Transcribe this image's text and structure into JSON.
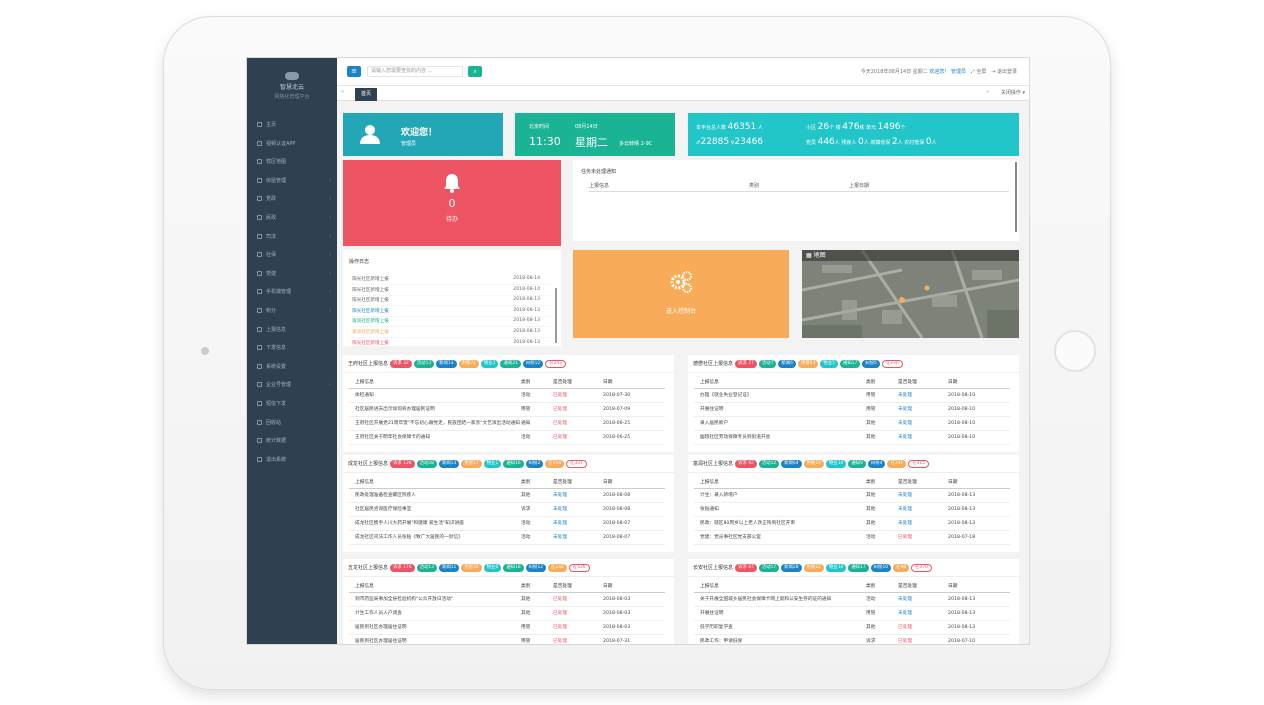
{
  "sidebar": {
    "logo_title": "智慧北云",
    "logo_sub": "网格化管理平台",
    "items": [
      {
        "label": "主页",
        "arrow": false
      },
      {
        "label": "视频认证APP",
        "arrow": false
      },
      {
        "label": "辖区地图",
        "arrow": false
      },
      {
        "label": "房屋管理",
        "arrow": true
      },
      {
        "label": "党政",
        "arrow": true
      },
      {
        "label": "民政",
        "arrow": true
      },
      {
        "label": "司法",
        "arrow": true
      },
      {
        "label": "社保",
        "arrow": true
      },
      {
        "label": "党建",
        "arrow": true
      },
      {
        "label": "手机端管理",
        "arrow": true
      },
      {
        "label": "积分",
        "arrow": true
      },
      {
        "label": "上报信息",
        "arrow": false
      },
      {
        "label": "下发信息",
        "arrow": false
      },
      {
        "label": "系统设置",
        "arrow": false
      },
      {
        "label": "企业号管理",
        "arrow": true
      },
      {
        "label": "短信下发",
        "arrow": false
      },
      {
        "label": "回收站",
        "arrow": false
      },
      {
        "label": "统计数据",
        "arrow": false
      },
      {
        "label": "退出系统",
        "arrow": false
      }
    ]
  },
  "topbar": {
    "menu_icon": "≡",
    "search_placeholder": "请输入您需要查找的内容 ...",
    "search_icon": "⌕",
    "datetime": "今天2018年08月14日 星期二",
    "welcome": "欢迎您！",
    "user": "管理员",
    "fullscreen": "全屏",
    "logout": "退出登录"
  },
  "tabs": {
    "prev": "«",
    "active": "首页",
    "next": "»",
    "close_ops": "关闭操作 ▾"
  },
  "welcome_card": {
    "title": "欢迎您！",
    "role": "管理员"
  },
  "date_card": {
    "city": "北京时间",
    "date": "08月14日",
    "time": "11:30",
    "weekday": "星期二",
    "weather": "多云转晴 2-9C"
  },
  "stats_card": {
    "l1_label": "本平台总人数",
    "l1_value": "46351",
    "l1_unit": "人",
    "l2_up": "22885",
    "l2_down": "23466",
    "r1": "小区",
    "r1_v": "26",
    "r1_u": "个 楼",
    "r1_v2": "476",
    "r1_u2": "栋 单元",
    "r1_v3": "1496",
    "r1_u3": "个",
    "r2": "党员",
    "r2_v": "446",
    "r2_u": "人 残疾人",
    "r2_v2": "0",
    "r2_u2": "人 城镇低保",
    "r2_v3": "2",
    "r2_u3": "人 农村低保",
    "r2_v4": "0",
    "r2_u4": "人"
  },
  "todo_card": {
    "count": "0",
    "label": "待办"
  },
  "task_panel": {
    "title": "任务未处理通知",
    "cols": [
      "上报信息",
      "类别",
      "上报日期"
    ]
  },
  "log_panel": {
    "title": "操作日志",
    "items": [
      {
        "text": "阳光社区新增上报",
        "date": "2018-08-14",
        "color": "#666"
      },
      {
        "text": "阳光社区新增上报",
        "date": "2018-08-14",
        "color": "#666"
      },
      {
        "text": "阳光社区新增上报",
        "date": "2018-08-13",
        "color": "#666"
      },
      {
        "text": "阳光社区新增上报",
        "date": "2018-08-13",
        "color": "#1c84c6"
      },
      {
        "text": "富润社区新增上报",
        "date": "2018-08-13",
        "color": "#1ab394"
      },
      {
        "text": "富润社区新增上报",
        "date": "2018-08-13",
        "color": "#f8ac59"
      },
      {
        "text": "阳光社区新增上报",
        "date": "2018-08-13",
        "color": "#ed5565"
      }
    ]
  },
  "console_card": {
    "label": "进入控制台"
  },
  "map_card": {
    "label": "地图"
  },
  "sections": [
    {
      "title": "王府社区上报信息",
      "badges": [
        "诉求 32",
        "活动13",
        "新闻13",
        "用管21",
        "物业1",
        "通知21",
        "纠纷12",
        "在243"
      ],
      "cols": [
        "上报信息",
        "类别",
        "是否处理",
        "日期"
      ],
      "rows": [
        [
          "体检通知",
          "活动",
          "已处理",
          "2018-07-30"
        ],
        [
          "社区居民进去出示如何商办理居民证明",
          "用管",
          "已处理",
          "2018-07-09"
        ],
        [
          "王府社区开展党21周年暨\"不忘初心跟党走，民族团结一家亲\"文艺演出活动通知",
          "通知",
          "已处理",
          "2018-06-25"
        ],
        [
          "王府社区关于明年社会保障卡的通知",
          "活动",
          "已处理",
          "2018-06-25"
        ]
      ]
    },
    {
      "title": "德懋社区上报信息",
      "badges": [
        "诉求 77",
        "活动7",
        "新闻6",
        "用管53",
        "物业5",
        "通知17",
        "纠纷5",
        "在230"
      ],
      "cols": [
        "上报信息",
        "类别",
        "是否处理",
        "日期"
      ],
      "rows": [
        [
          "办理《就业失业登记证》",
          "用管",
          "未处理",
          "2018-08-10"
        ],
        [
          "开展住证明",
          "用管",
          "未处理",
          "2018-08-10"
        ],
        [
          "录入居民新户",
          "其他",
          "未处理",
          "2018-08-10"
        ],
        [
          "幽琅社区劳动保障专员到街道开会",
          "其他",
          "未处理",
          "2018-08-10"
        ]
      ]
    },
    {
      "title": "成龙社区上报信息",
      "badges": [
        "诉求 126",
        "活动28",
        "新闻13",
        "用管17",
        "物业1",
        "通知16",
        "纠纷2",
        "在154",
        "在337"
      ],
      "cols": [
        "上报信息",
        "类别",
        "是否处理",
        "日期"
      ],
      "rows": [
        [
          "民政处理准备检查螺区残疾人",
          "其他",
          "未处理",
          "2018-08-08"
        ],
        [
          "社区居民咨询医疗保险事宜",
          "诉求",
          "未处理",
          "2018-08-08"
        ],
        [
          "成龙社区携手人川大药开展\"和健康 爱生活\"知识讲座",
          "活动",
          "未处理",
          "2018-08-07"
        ],
        [
          "成龙社区司法工作人员张贴《致广大居民的一封信》",
          "活动",
          "未处理",
          "2018-08-07"
        ]
      ]
    },
    {
      "title": "富润社区上报信息",
      "badges": [
        "诉求 92",
        "活动12",
        "新闻64",
        "用管19",
        "物业10",
        "通知9",
        "纠纷4",
        "在241",
        "在315"
      ],
      "cols": [
        "上报信息",
        "类别",
        "是否处理",
        "日期"
      ],
      "rows": [
        [
          "计生：录入新增户",
          "其他",
          "未处理",
          "2018-08-13"
        ],
        [
          "张贴通知",
          "其他",
          "未处理",
          "2018-08-13"
        ],
        [
          "民政：辖区80周岁以上老人改正残到社区开审",
          "其他",
          "未处理",
          "2018-08-13"
        ],
        [
          "党建：党员事社区党支部公室",
          "活动",
          "已处理",
          "2018-07-18"
        ]
      ]
    },
    {
      "title": "五龙社区上报信息",
      "badges": [
        "诉求 176",
        "活动13",
        "新闻11",
        "用管35",
        "物业6",
        "通知18",
        "纠纷12",
        "在246",
        "在526"
      ],
      "cols": [
        "上报信息",
        "类别",
        "是否处理",
        "日期"
      ],
      "rows": [
        [
          "到市药监局事加全县检验机构\"公众开放日活动\"",
          "其他",
          "已处理",
          "2018-08-03"
        ],
        [
          "计生工作人员入户调查",
          "其他",
          "已处理",
          "2018-08-03"
        ],
        [
          "居民到社区办理居住证明",
          "用管",
          "已处理",
          "2018-08-03"
        ],
        [
          "居民到社区办理居住证明",
          "用管",
          "已处理",
          "2018-07-31"
        ]
      ]
    },
    {
      "title": "长安社区上报信息",
      "badges": [
        "诉求 87",
        "活动17",
        "新闻28",
        "用管22",
        "物业16",
        "通知17",
        "纠纷10",
        "在98",
        "在370"
      ],
      "cols": [
        "上报信息",
        "类别",
        "是否处理",
        "日期"
      ],
      "rows": [
        [
          "关于开展全国城乡居民社会保障卡网上就和公安生存的证的通知",
          "活动",
          "未处理",
          "2018-08-13"
        ],
        [
          "开展住证明",
          "用管",
          "未处理",
          "2018-08-13"
        ],
        [
          "低学历职复学查",
          "其他",
          "已处理",
          "2018-08-13"
        ],
        [
          "民政工作：申请低保",
          "诉求",
          "已处理",
          "2018-07-10"
        ]
      ]
    }
  ],
  "colors": {
    "sidebar": "#2f4050",
    "teal": "#23a6b5",
    "green": "#1ab394",
    "cyan": "#23c6c8",
    "red": "#ed5565",
    "orange": "#f8ac59",
    "blue": "#1c84c6"
  }
}
